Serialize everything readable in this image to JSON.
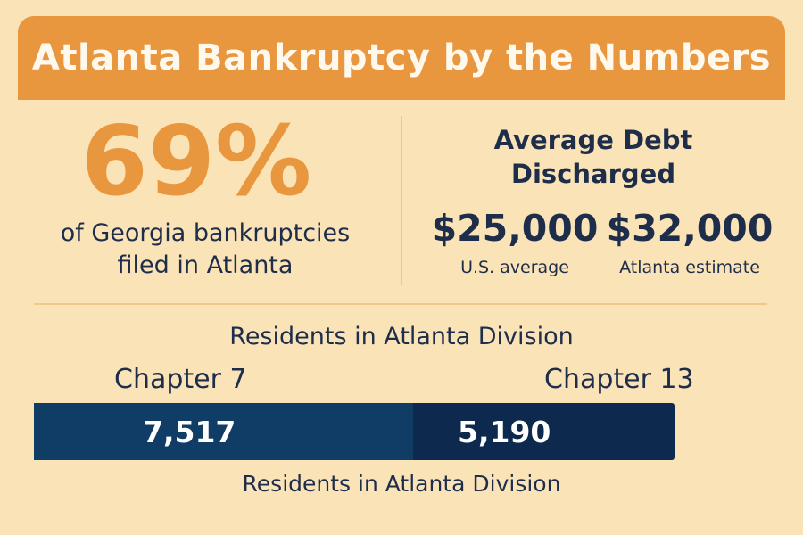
{
  "title": "Atlanta Bankruptcy by the Numbers",
  "share": {
    "value": "69%",
    "caption": "of Georgia bankruptcies\nfiled in Atlanta"
  },
  "debt": {
    "heading": "Average Debt\nDischarged",
    "items": [
      {
        "value": "$25,000",
        "label": "U.S. average"
      },
      {
        "value": "$32,000",
        "label": "Atlanta estimate"
      }
    ]
  },
  "residents": {
    "title": "Residents in Atlanta Division",
    "caption": "Residents in Atlanta Division"
  },
  "colors": {
    "background": "#fbe3b8",
    "accent": "#e9973f",
    "text": "#1e2d4a",
    "chapter7": "#0f3d66",
    "chapter13": "#0d2a4e"
  },
  "chart_data": {
    "type": "bar",
    "categories": [
      "Chapter 7",
      "Chapter 13"
    ],
    "values": [
      7517,
      5190
    ],
    "value_labels": [
      "7,517",
      "5,190"
    ],
    "title": "Residents in Atlanta Division",
    "xlabel": "Residents in Atlanta Division",
    "stacked": true
  }
}
